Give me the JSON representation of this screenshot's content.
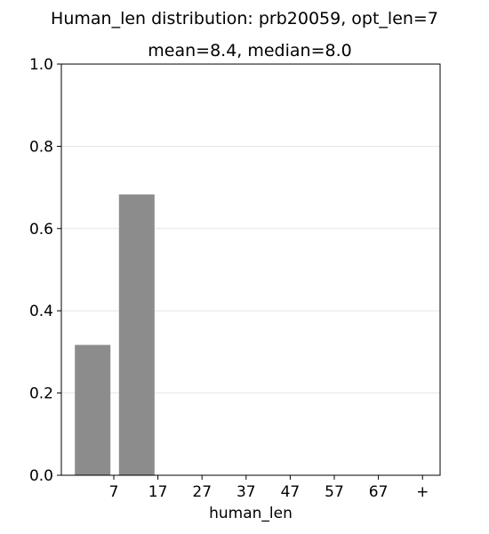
{
  "chart_data": {
    "type": "bar",
    "title": "Human_len distribution: prb20059, opt_len=7",
    "subtitle": "mean=8.4, median=8.0",
    "xlabel": "human_len",
    "ylabel": "",
    "categories": [
      "7",
      "17",
      "27",
      "37",
      "47",
      "57",
      "67",
      "+"
    ],
    "values": [
      0.317,
      0.683,
      0,
      0,
      0,
      0,
      0,
      0
    ],
    "ylim": [
      0,
      1.0
    ],
    "yticks": [
      "0.0",
      "0.2",
      "0.4",
      "0.6",
      "0.8",
      "1.0"
    ],
    "grid": "horizontal",
    "bar_color": "#8c8c8c",
    "grid_color": "#e6e6e6"
  }
}
